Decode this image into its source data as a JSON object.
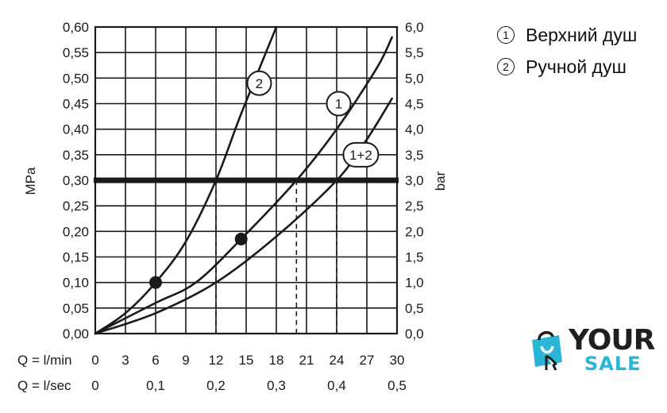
{
  "chart_data": {
    "type": "line",
    "x": {
      "label_lmin": "Q = l/min",
      "label_lsec": "Q = l/sec",
      "range": [
        0,
        30
      ],
      "ticks_lmin": [
        "0",
        "3",
        "6",
        "9",
        "12",
        "15",
        "18",
        "21",
        "24",
        "27",
        "30"
      ],
      "ticks_lsec": [
        {
          "value": 0,
          "label": "0"
        },
        {
          "value": 6,
          "label": "0,1"
        },
        {
          "value": 12,
          "label": "0,2"
        },
        {
          "value": 18,
          "label": "0,3"
        },
        {
          "value": 24,
          "label": "0,4"
        },
        {
          "value": 30,
          "label": "0,5"
        }
      ]
    },
    "y_left": {
      "label": "MPa",
      "range": [
        0,
        0.6
      ],
      "ticks": [
        "0,00",
        "0,05",
        "0,10",
        "0,15",
        "0,20",
        "0,25",
        "0,30",
        "0,35",
        "0,40",
        "0,45",
        "0,50",
        "0,55",
        "0,60"
      ]
    },
    "y_right": {
      "label": "bar",
      "range": [
        0,
        6
      ],
      "ticks": [
        "0,0",
        "0,5",
        "1,0",
        "1,5",
        "2,0",
        "2,5",
        "3,0",
        "3,5",
        "4,0",
        "4,5",
        "5,0",
        "5,5",
        "6,0"
      ]
    },
    "grid": true,
    "reference_line": {
      "y": 0.3,
      "style": "thick"
    },
    "drop_lines_x": [
      12,
      20,
      24
    ],
    "series": [
      {
        "name": "1",
        "points": [
          [
            0,
            0
          ],
          [
            6,
            0.06
          ],
          [
            10,
            0.1
          ],
          [
            14.5,
            0.185
          ],
          [
            20,
            0.3
          ],
          [
            24,
            0.4
          ],
          [
            28,
            0.52
          ],
          [
            29.5,
            0.58
          ]
        ]
      },
      {
        "name": "2",
        "points": [
          [
            0,
            0
          ],
          [
            3,
            0.04
          ],
          [
            6,
            0.1
          ],
          [
            9,
            0.18
          ],
          [
            12,
            0.3
          ],
          [
            14.5,
            0.43
          ],
          [
            18,
            0.6
          ]
        ]
      },
      {
        "name": "1+2",
        "points": [
          [
            0,
            0
          ],
          [
            6,
            0.04
          ],
          [
            12,
            0.1
          ],
          [
            18,
            0.19
          ],
          [
            24,
            0.3
          ],
          [
            27,
            0.38
          ],
          [
            29.5,
            0.46
          ]
        ]
      }
    ],
    "markers": [
      [
        6,
        0.1
      ],
      [
        14.5,
        0.185
      ]
    ],
    "series_labels": [
      {
        "name": "2",
        "x": 16.3,
        "y": 0.49
      },
      {
        "name": "1",
        "x": 24.2,
        "y": 0.45
      },
      {
        "name": "1+2",
        "x": 26.4,
        "y": 0.35
      }
    ]
  },
  "legend": [
    {
      "mark": "1",
      "text": "Верхний душ"
    },
    {
      "mark": "2",
      "text": "Ручной душ"
    }
  ],
  "logo": {
    "line1": "YOUR",
    "line2": "SALE",
    "accent": "#29b6d6",
    "dark": "#1f1f1f"
  }
}
